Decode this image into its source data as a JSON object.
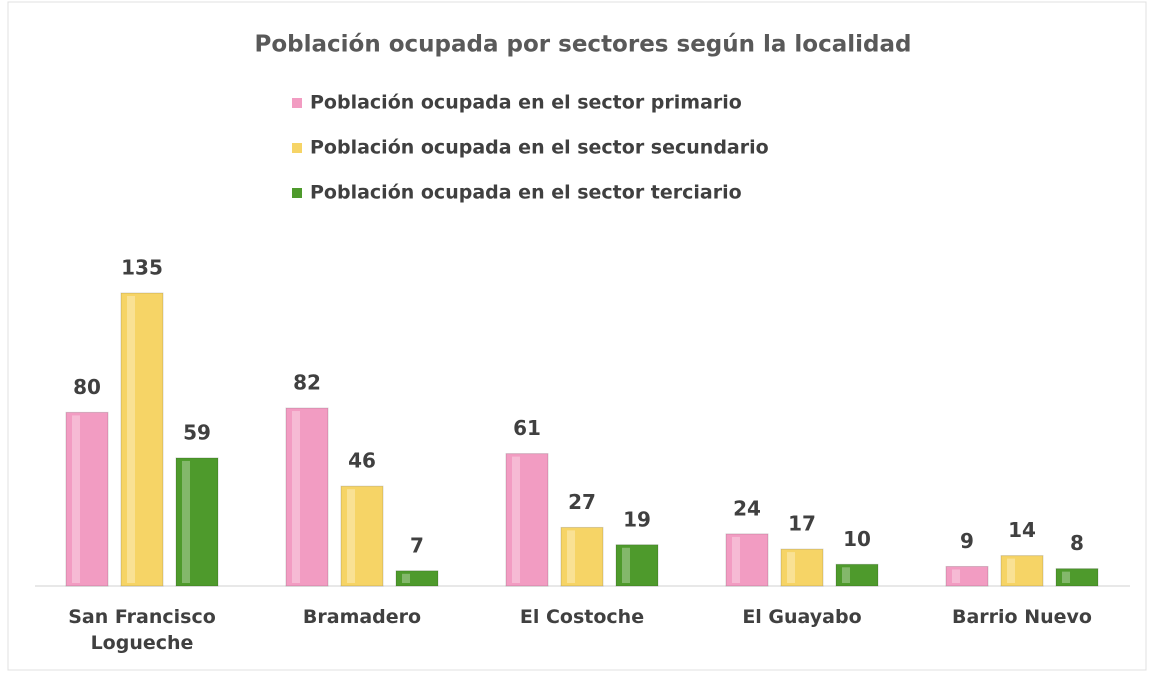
{
  "chart_data": {
    "type": "bar",
    "title": "Población ocupada por sectores según la localidad",
    "categories": [
      "San Francisco Logueche",
      "Bramadero",
      "El Costoche",
      "El Guayabo",
      "Barrio Nuevo"
    ],
    "series": [
      {
        "name": "Población ocupada en el sector primario",
        "color": "#f29cc2",
        "values": [
          80,
          82,
          61,
          24,
          9
        ]
      },
      {
        "name": "Población ocupada en el sector secundario",
        "color": "#f6d466",
        "values": [
          135,
          46,
          27,
          17,
          14
        ]
      },
      {
        "name": "Población ocupada en el sector terciario",
        "color": "#4e9a2c",
        "values": [
          59,
          7,
          19,
          10,
          8
        ]
      }
    ]
  }
}
